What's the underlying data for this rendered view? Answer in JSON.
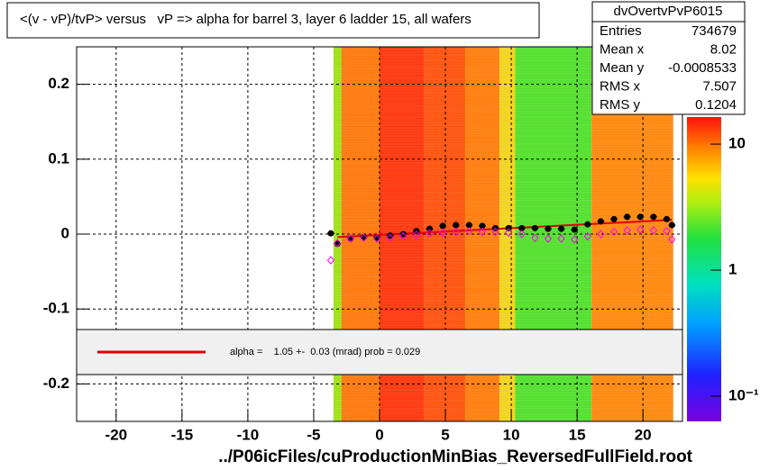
{
  "chart_data": {
    "type": "profile",
    "title": "<(v - vP)/tvP> versus   vP => alpha for barrel 3, layer 6 ladder 15, all wafers",
    "xlabel": "../P06icFiles/cuProductionMinBias_ReversedFullField.root",
    "xlim": [
      -23,
      23
    ],
    "ylim": [
      -0.25,
      0.25
    ],
    "xticks": [
      -20,
      -15,
      -10,
      -5,
      0,
      5,
      10,
      15,
      20
    ],
    "yticks": [
      -0.2,
      -0.1,
      0,
      0.1,
      0.2
    ],
    "grid": true,
    "heatmap": [
      {
        "x0": -3.5,
        "x1": -2.9,
        "color": "#9ee21a"
      },
      {
        "x0": -2.9,
        "x1": 0,
        "color": "#ff7a10"
      },
      {
        "x0": 0,
        "x1": 3.4,
        "color": "#ff3a10"
      },
      {
        "x0": 3.4,
        "x1": 6.5,
        "color": "#ff5512"
      },
      {
        "x0": 6.5,
        "x1": 9.1,
        "color": "#ff7f10"
      },
      {
        "x0": 9.1,
        "x1": 10.3,
        "color": "#f2d420"
      },
      {
        "x0": 10.3,
        "x1": 16.1,
        "color": "#55e030"
      },
      {
        "x0": 16.1,
        "x1": 22.3,
        "color": "#ff8a12"
      }
    ],
    "series": [
      {
        "color": "#000000",
        "marker": "circle",
        "x": [
          -3.7,
          -3.2,
          -2.2,
          -1.2,
          -0.2,
          0.8,
          1.8,
          2.8,
          3.8,
          4.8,
          5.8,
          6.8,
          7.8,
          8.8,
          9.8,
          10.8,
          11.8,
          12.8,
          13.8,
          14.8,
          15.8,
          16.8,
          17.8,
          18.8,
          19.8,
          20.8,
          21.8,
          22.2
        ],
        "values": [
          0.001,
          -0.013,
          -0.006,
          -0.004,
          -0.005,
          -0.002,
          0,
          0.004,
          0.007,
          0.011,
          0.012,
          0.012,
          0.011,
          0.008,
          0.008,
          0.008,
          0.008,
          0.007,
          0.007,
          0.006,
          0.013,
          0.017,
          0.02,
          0.023,
          0.023,
          0.023,
          0.02,
          0.012
        ]
      },
      {
        "color": "#ff00ff",
        "marker": "diamond",
        "x": [
          -3.7,
          -3.2,
          -2.2,
          -1.2,
          -0.2,
          0.8,
          1.8,
          2.8,
          3.8,
          4.8,
          5.8,
          6.8,
          7.8,
          8.8,
          9.8,
          10.8,
          11.8,
          12.8,
          13.8,
          14.8,
          15.8,
          16.8,
          17.8,
          18.8,
          19.8,
          20.8,
          21.8,
          22.2
        ],
        "values": [
          -0.035,
          -0.012,
          -0.006,
          -0.005,
          -0.006,
          -0.005,
          -0.003,
          -0.001,
          0.001,
          0.002,
          0.003,
          0.004,
          0.003,
          0.003,
          0.002,
          0.0,
          -0.005,
          -0.006,
          -0.006,
          -0.007,
          -0.003,
          0.0,
          0.003,
          0.005,
          0.006,
          0.005,
          0.004,
          -0.007
        ]
      }
    ],
    "fit": {
      "color": "#e00000",
      "x": [
        -3.2,
        22.2
      ],
      "values": [
        -0.004,
        0.019
      ]
    },
    "fit_label": "alpha =    1.05 +-  0.03 (mrad) prob = 0.029",
    "zlim": [
      0.063,
      16.4
    ],
    "zlog": true,
    "zticks": [
      10,
      1,
      {
        "value": 0.1,
        "label": "10⁻¹"
      }
    ],
    "stats": {
      "name": "dvOvertvPvP6015",
      "rows": [
        [
          "Entries",
          734679
        ],
        [
          "Mean x",
          8.02
        ],
        [
          "Mean y",
          -0.0008533
        ],
        [
          "RMS x",
          7.507
        ],
        [
          "RMS y",
          0.1204
        ]
      ]
    }
  }
}
